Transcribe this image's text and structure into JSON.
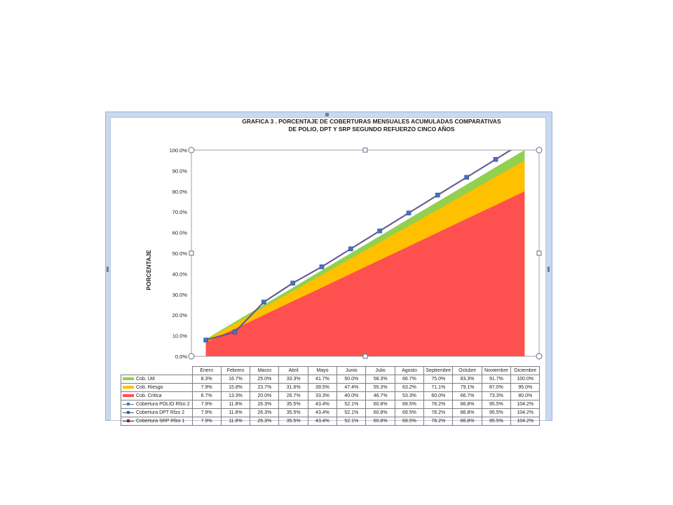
{
  "chart_data": {
    "type": "area",
    "title_line1": "GRAFICA 3 .  PORCENTAJE DE COBERTURAS MENSUALES ACUMULADAS COMPARATIVAS",
    "title_line2": "DE POLIO, DPT Y SRP SEGUNDO REFUERZO CINCO AÑOS",
    "ylabel": "PORCENTAJE",
    "xlabel": "",
    "ylim": [
      0,
      100
    ],
    "ytick_labels": [
      "0.0%",
      "10.0%",
      "20.0%",
      "30.0%",
      "40.0%",
      "50.0%",
      "60.0%",
      "70.0%",
      "80.0%",
      "90.0%",
      "100.0%"
    ],
    "categories": [
      "Enero",
      "Febrero",
      "Marzo",
      "Abril",
      "Mayo",
      "Junio",
      "Julio",
      "Agosto",
      "Septiembre",
      "Octubre",
      "Noviembre",
      "Diciembre"
    ],
    "grid": false,
    "legend_placement": "data table below chart",
    "series": [
      {
        "name": "Cob. Útil",
        "kind": "area",
        "color": "#92d050",
        "values": [
          8.3,
          16.7,
          25.0,
          33.3,
          41.7,
          50.0,
          58.3,
          66.7,
          75.0,
          83.3,
          91.7,
          100.0
        ],
        "labels": [
          "8.3%",
          "16.7%",
          "25.0%",
          "33.3%",
          "41.7%",
          "50.0%",
          "58.3%",
          "66.7%",
          "75.0%",
          "83.3%",
          "91.7%",
          "100.0%"
        ]
      },
      {
        "name": "Cob. Riesgo",
        "kind": "area",
        "color": "#ffc000",
        "values": [
          7.9,
          15.8,
          23.7,
          31.6,
          39.5,
          47.4,
          55.3,
          63.2,
          71.1,
          79.1,
          87.0,
          95.0
        ],
        "labels": [
          "7.9%",
          "15.8%",
          "23.7%",
          "31.6%",
          "39.5%",
          "47.4%",
          "55.3%",
          "63.2%",
          "71.1%",
          "79.1%",
          "87.0%",
          "95.0%"
        ]
      },
      {
        "name": "Cob. Critica",
        "kind": "area",
        "color": "#ff5050",
        "values": [
          6.7,
          13.3,
          20.0,
          26.7,
          33.3,
          40.0,
          46.7,
          53.3,
          60.0,
          66.7,
          73.3,
          80.0
        ],
        "labels": [
          "6.7%",
          "13.3%",
          "20.0%",
          "26.7%",
          "33.3%",
          "40.0%",
          "46.7%",
          "53.3%",
          "60.0%",
          "66.7%",
          "73.3%",
          "80.0%"
        ]
      },
      {
        "name": "Cobertura POLIO Rfzo 2",
        "kind": "line",
        "color": "#4472c4",
        "values": [
          7.9,
          11.8,
          26.3,
          35.5,
          43.4,
          52.1,
          60.8,
          69.5,
          78.2,
          86.8,
          95.5,
          104.2
        ],
        "labels": [
          "7.9%",
          "11.8%",
          "26.3%",
          "35.5%",
          "43.4%",
          "52.1%",
          "60.8%",
          "69.5%",
          "78.2%",
          "86.8%",
          "95.5%",
          "104.2%"
        ]
      },
      {
        "name": "Cobertura DPT Rfzo 2",
        "kind": "line",
        "color": "#2e5d9a",
        "values": [
          7.9,
          11.8,
          26.3,
          35.5,
          43.4,
          52.1,
          60.8,
          69.5,
          78.2,
          86.8,
          95.5,
          104.2
        ],
        "labels": [
          "7.9%",
          "11.8%",
          "26.3%",
          "35.5%",
          "43.4%",
          "52.1%",
          "60.8%",
          "69.5%",
          "78.2%",
          "86.8%",
          "95.5%",
          "104.2%"
        ]
      },
      {
        "name": "Cobertura SRP Rfzo 1",
        "kind": "line",
        "color": "#9b1c1c",
        "values": [
          7.9,
          11.8,
          26.3,
          35.5,
          43.4,
          52.1,
          60.8,
          69.5,
          78.2,
          86.8,
          95.5,
          104.2
        ],
        "labels": [
          "7.9%",
          "11.8%",
          "26.3%",
          "35.5%",
          "43.4%",
          "52.1%",
          "60.8%",
          "69.5%",
          "78.2%",
          "86.8%",
          "95.5%",
          "104.2%"
        ]
      }
    ]
  }
}
